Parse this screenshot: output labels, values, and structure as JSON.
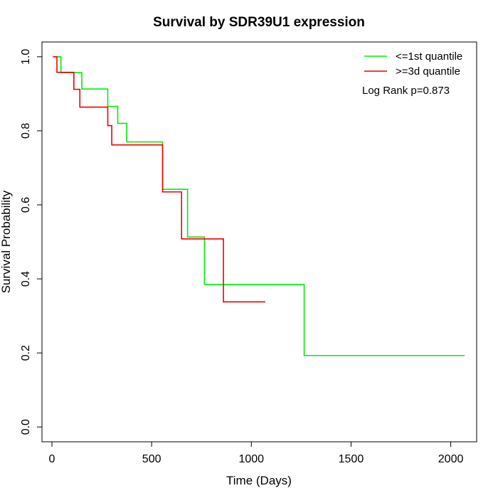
{
  "chart_data": {
    "type": "line",
    "subtype": "kaplan-meier step",
    "title": "Survival by SDR39U1 expression",
    "xlabel": "Time (Days)",
    "ylabel": "Survival Probability",
    "xlim": [
      -50,
      2130
    ],
    "ylim": [
      -0.04,
      1.04
    ],
    "xticks": [
      0,
      500,
      1000,
      1500,
      2000
    ],
    "xtick_labels": [
      "0",
      "500",
      "1000",
      "1500",
      "2000"
    ],
    "yticks": [
      0.0,
      0.2,
      0.4,
      0.6,
      0.8,
      1.0
    ],
    "ytick_labels": [
      "0.0",
      "0.2",
      "0.4",
      "0.6",
      "0.8",
      "1.0"
    ],
    "legend_position": "top-right",
    "annotation": "Log Rank p=0.873",
    "series": [
      {
        "name": "<=1st quantile",
        "color": "#00ee00",
        "x": [
          5,
          45,
          150,
          280,
          330,
          375,
          555,
          680,
          765,
          1265,
          2070
        ],
        "y": [
          1.0,
          0.957,
          0.913,
          0.866,
          0.82,
          0.77,
          0.642,
          0.513,
          0.385,
          0.193,
          0.193
        ]
      },
      {
        "name": ">=3d quantile",
        "color": "#ee0000",
        "x": [
          5,
          25,
          110,
          140,
          280,
          300,
          555,
          650,
          860,
          1070
        ],
        "y": [
          1.0,
          0.958,
          0.912,
          0.864,
          0.814,
          0.762,
          0.635,
          0.508,
          0.338,
          0.338
        ]
      }
    ]
  }
}
